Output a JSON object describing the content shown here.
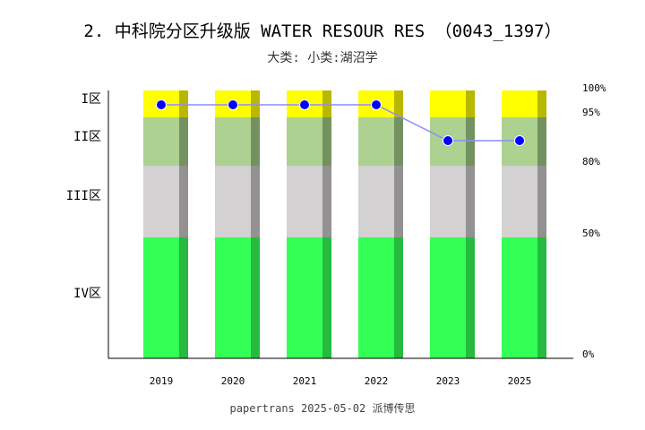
{
  "title": "2. 中科院分区升级版 WATER RESOUR RES （0043_1397）",
  "subtitle": "大类:  小类:湖沼学",
  "footer": "papertrans 2025-05-02 派博传思",
  "chart_data": {
    "type": "bar",
    "categories": [
      "2019",
      "2020",
      "2021",
      "2022",
      "2023",
      "2025"
    ],
    "zones": [
      {
        "label": "I区",
        "from": 95,
        "to": 100,
        "color": "#ffff00",
        "shade": "#b8b800"
      },
      {
        "label": "II区",
        "from": 80,
        "to": 95,
        "color": "#acd190",
        "shade": "#739260"
      },
      {
        "label": "III区",
        "from": 50,
        "to": 80,
        "color": "#d3d1d2",
        "shade": "#939192"
      },
      {
        "label": "IV区",
        "from": 0,
        "to": 50,
        "color": "#33ff55",
        "shade": "#26bb3f"
      }
    ],
    "right_ticks": [
      "100%",
      "95%",
      "80%",
      "50%",
      "0%"
    ],
    "series": [
      {
        "values": [
          "I区",
          "I区",
          "I区",
          "I区",
          "II区",
          "II区"
        ],
        "color": "#0000ff",
        "line_color": "#8c8cff"
      }
    ]
  }
}
